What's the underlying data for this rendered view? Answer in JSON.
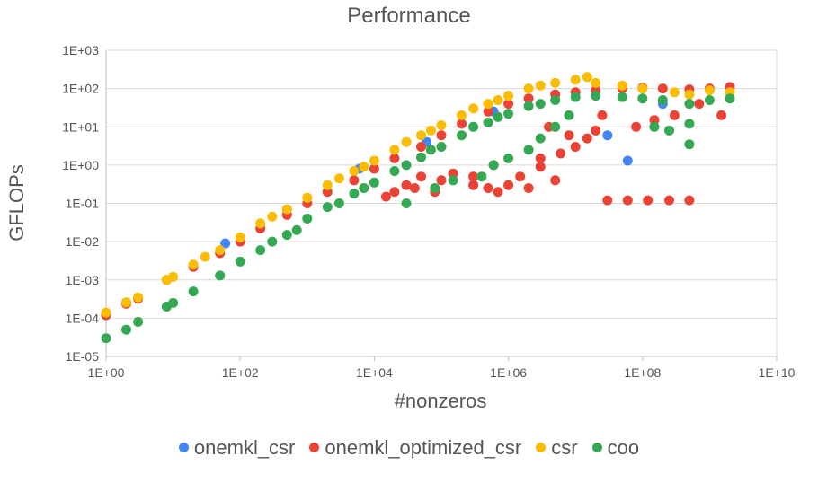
{
  "chart_data": {
    "type": "scatter",
    "title": "Performance",
    "xlabel": "#nonzeros",
    "ylabel": "GFLOPs",
    "x_scale": "log",
    "y_scale": "log",
    "xlim": [
      1,
      10000000000
    ],
    "ylim": [
      1e-05,
      1000
    ],
    "x_ticks": [
      "1E+00",
      "1E+02",
      "1E+04",
      "1E+06",
      "1E+08",
      "1E+10"
    ],
    "y_ticks": [
      "1E-05",
      "1E-04",
      "1E-03",
      "1E-02",
      "1E-01",
      "1E+00",
      "1E+01",
      "1E+02",
      "1E+03"
    ],
    "grid": "horizontal",
    "legend_position": "bottom",
    "series": [
      {
        "name": "onemkl_csr",
        "color": "#4285F4",
        "points": [
          [
            1,
            0.00012
          ],
          [
            2,
            0.00025
          ],
          [
            3,
            0.00033
          ],
          [
            8,
            0.001
          ],
          [
            60,
            0.009
          ],
          [
            500,
            0.07
          ],
          [
            6000,
            0.8
          ],
          [
            60000,
            4
          ],
          [
            600000,
            25
          ],
          [
            30000000,
            6
          ],
          [
            60000000,
            1.3
          ],
          [
            200000000,
            40
          ]
        ]
      },
      {
        "name": "onemkl_optimized_csr",
        "color": "#EA4335",
        "points": [
          [
            1,
            0.00012
          ],
          [
            2,
            0.00024
          ],
          [
            3,
            0.00032
          ],
          [
            8,
            0.001
          ],
          [
            20,
            0.0022
          ],
          [
            50,
            0.005
          ],
          [
            100,
            0.01
          ],
          [
            200,
            0.022
          ],
          [
            500,
            0.05
          ],
          [
            1000,
            0.1
          ],
          [
            2000,
            0.2
          ],
          [
            5000,
            0.4
          ],
          [
            10000,
            0.8
          ],
          [
            20000,
            1.5
          ],
          [
            50000,
            3
          ],
          [
            100000,
            6
          ],
          [
            200000,
            12
          ],
          [
            500000,
            25
          ],
          [
            1000000,
            40
          ],
          [
            2000000,
            55
          ],
          [
            5000000,
            70
          ],
          [
            10000000,
            80
          ],
          [
            20000000,
            90
          ],
          [
            50000000,
            100
          ],
          [
            100000000,
            105
          ],
          [
            200000000,
            100
          ],
          [
            500000000,
            95
          ],
          [
            1000000000,
            100
          ],
          [
            2000000000,
            110
          ],
          [
            20000,
            0.2
          ],
          [
            40000,
            0.25
          ],
          [
            80000,
            0.2
          ],
          [
            100000,
            0.4
          ],
          [
            150000,
            0.6
          ],
          [
            300000,
            0.3
          ],
          [
            500000,
            0.25
          ],
          [
            700000,
            0.2
          ],
          [
            1000000,
            0.3
          ],
          [
            1500000,
            0.5
          ],
          [
            2000000,
            0.25
          ],
          [
            3000000,
            0.9
          ],
          [
            5000000,
            0.4
          ],
          [
            6000000,
            2
          ],
          [
            10000000,
            3
          ],
          [
            15000000,
            5
          ],
          [
            20000000,
            8
          ],
          [
            25000000,
            20
          ],
          [
            30000000,
            0.12
          ],
          [
            60000000,
            0.12
          ],
          [
            120000000,
            0.12
          ],
          [
            250000000,
            0.12
          ],
          [
            500000000,
            0.12
          ],
          [
            80000000,
            10
          ],
          [
            150000000,
            15
          ],
          [
            300000000,
            20
          ],
          [
            700000000,
            40
          ],
          [
            1500000000,
            20
          ],
          [
            4000000,
            10
          ],
          [
            8000000,
            6
          ],
          [
            3000000,
            1.5
          ],
          [
            600000,
            1
          ],
          [
            300000,
            0.5
          ],
          [
            50000,
            0.5
          ],
          [
            30000,
            0.3
          ],
          [
            15000,
            0.15
          ]
        ]
      },
      {
        "name": "csr",
        "color": "#FBBC04",
        "points": [
          [
            1,
            0.00014
          ],
          [
            2,
            0.00026
          ],
          [
            3,
            0.00035
          ],
          [
            8,
            0.001
          ],
          [
            10,
            0.0012
          ],
          [
            20,
            0.0025
          ],
          [
            50,
            0.006
          ],
          [
            100,
            0.013
          ],
          [
            200,
            0.03
          ],
          [
            500,
            0.07
          ],
          [
            1000,
            0.14
          ],
          [
            2000,
            0.3
          ],
          [
            5000,
            0.7
          ],
          [
            10000,
            1.3
          ],
          [
            20000,
            2.5
          ],
          [
            50000,
            6
          ],
          [
            100000,
            11
          ],
          [
            200000,
            20
          ],
          [
            500000,
            40
          ],
          [
            1000000,
            65
          ],
          [
            2000000,
            100
          ],
          [
            5000000,
            140
          ],
          [
            10000000,
            170
          ],
          [
            15000000,
            200
          ],
          [
            20000000,
            140
          ],
          [
            50000000,
            120
          ],
          [
            100000000,
            100
          ],
          [
            300000000,
            80
          ],
          [
            500000000,
            70
          ],
          [
            1000000000,
            90
          ],
          [
            2000000000,
            80
          ],
          [
            30,
            0.004
          ],
          [
            300,
            0.045
          ],
          [
            3000,
            0.45
          ],
          [
            30000,
            4
          ],
          [
            300000,
            30
          ],
          [
            3000000,
            120
          ],
          [
            7000,
            0.9
          ],
          [
            70000,
            8
          ],
          [
            700000,
            50
          ]
        ]
      },
      {
        "name": "coo",
        "color": "#34A853",
        "points": [
          [
            1,
            3e-05
          ],
          [
            2,
            5e-05
          ],
          [
            3,
            8e-05
          ],
          [
            8,
            0.0002
          ],
          [
            10,
            0.00025
          ],
          [
            20,
            0.0005
          ],
          [
            50,
            0.0013
          ],
          [
            100,
            0.003
          ],
          [
            200,
            0.006
          ],
          [
            500,
            0.015
          ],
          [
            1000,
            0.04
          ],
          [
            2000,
            0.08
          ],
          [
            5000,
            0.18
          ],
          [
            10000,
            0.35
          ],
          [
            20000,
            0.7
          ],
          [
            50000,
            1.6
          ],
          [
            100000,
            3
          ],
          [
            200000,
            6
          ],
          [
            500000,
            13
          ],
          [
            1000000,
            22
          ],
          [
            2000000,
            35
          ],
          [
            5000000,
            50
          ],
          [
            10000000,
            60
          ],
          [
            20000000,
            65
          ],
          [
            50000000,
            60
          ],
          [
            100000000,
            55
          ],
          [
            200000000,
            50
          ],
          [
            500000000,
            40
          ],
          [
            1000000000,
            50
          ],
          [
            2000000000,
            55
          ],
          [
            500000000,
            3.5
          ],
          [
            500000000,
            12
          ],
          [
            30000,
            0.1
          ],
          [
            80000,
            0.25
          ],
          [
            150000,
            0.4
          ],
          [
            400000,
            0.5
          ],
          [
            600000,
            1
          ],
          [
            1000000,
            1.5
          ],
          [
            2000000,
            2.5
          ],
          [
            3000000,
            5
          ],
          [
            5000000,
            10
          ],
          [
            8000000,
            20
          ],
          [
            300,
            0.01
          ],
          [
            3000,
            0.1
          ],
          [
            30000,
            1
          ],
          [
            300000,
            10
          ],
          [
            3000000,
            40
          ],
          [
            700,
            0.02
          ],
          [
            7000,
            0.25
          ],
          [
            70000,
            2.5
          ],
          [
            700000,
            18
          ],
          [
            150000000,
            10
          ],
          [
            250000000,
            8
          ]
        ]
      }
    ]
  }
}
